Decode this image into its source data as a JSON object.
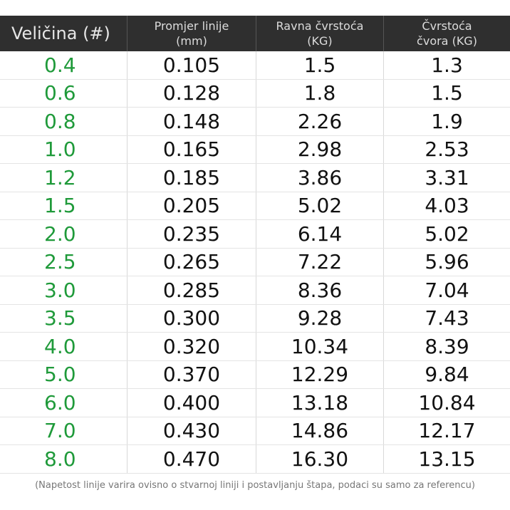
{
  "headers": [
    [
      "Veličina (#)"
    ],
    [
      "Promjer linije",
      "(mm)"
    ],
    [
      "Ravna čvrstoća",
      "(KG)"
    ],
    [
      "Čvrstoća",
      "čvora (KG)"
    ]
  ],
  "rows": [
    [
      "0.4",
      "0.105",
      "1.5",
      "1.3"
    ],
    [
      "0.6",
      "0.128",
      "1.8",
      "1.5"
    ],
    [
      "0.8",
      "0.148",
      "2.26",
      "1.9"
    ],
    [
      "1.0",
      "0.165",
      "2.98",
      "2.53"
    ],
    [
      "1.2",
      "0.185",
      "3.86",
      "3.31"
    ],
    [
      "1.5",
      "0.205",
      "5.02",
      "4.03"
    ],
    [
      "2.0",
      "0.235",
      "6.14",
      "5.02"
    ],
    [
      "2.5",
      "0.265",
      "7.22",
      "5.96"
    ],
    [
      "3.0",
      "0.285",
      "8.36",
      "7.04"
    ],
    [
      "3.5",
      "0.300",
      "9.28",
      "7.43"
    ],
    [
      "4.0",
      "0.320",
      "10.34",
      "8.39"
    ],
    [
      "5.0",
      "0.370",
      "12.29",
      "9.84"
    ],
    [
      "6.0",
      "0.400",
      "13.18",
      "10.84"
    ],
    [
      "7.0",
      "0.430",
      "14.86",
      "12.17"
    ],
    [
      "8.0",
      "0.470",
      "16.30",
      "13.15"
    ]
  ],
  "footnote": "(Napetost linije varira ovisno o stvarnoj liniji i postavljanju štapa, podaci su samo za referencu)",
  "colors": {
    "header_bg": "#2f2f2f",
    "size_text": "#1f9a3a"
  }
}
